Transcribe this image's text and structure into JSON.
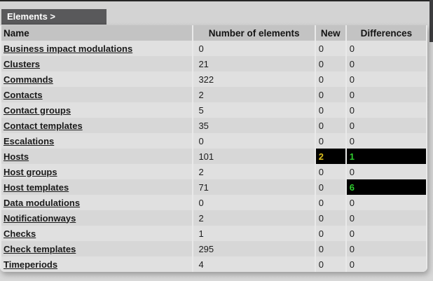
{
  "title_bar": {
    "label": "Elements >"
  },
  "table": {
    "columns": [
      "Name",
      "Number of elements",
      "New",
      "Differences"
    ],
    "rows": [
      {
        "name": "Business impact modulations",
        "count": "0",
        "new": "0",
        "diff": "0"
      },
      {
        "name": "Clusters",
        "count": "21",
        "new": "0",
        "diff": "0"
      },
      {
        "name": "Commands",
        "count": "322",
        "new": "0",
        "diff": "0"
      },
      {
        "name": "Contacts",
        "count": "2",
        "new": "0",
        "diff": "0"
      },
      {
        "name": "Contact groups",
        "count": "5",
        "new": "0",
        "diff": "0"
      },
      {
        "name": "Contact templates",
        "count": "35",
        "new": "0",
        "diff": "0"
      },
      {
        "name": "Escalations",
        "count": "0",
        "new": "0",
        "diff": "0"
      },
      {
        "name": "Hosts",
        "count": "101",
        "new": "2",
        "diff": "1",
        "new_highlight": true,
        "diff_highlight": true
      },
      {
        "name": "Host groups",
        "count": "2",
        "new": "0",
        "diff": "0"
      },
      {
        "name": "Host templates",
        "count": "71",
        "new": "0",
        "diff": "6",
        "diff_highlight": true
      },
      {
        "name": "Data modulations",
        "count": "0",
        "new": "0",
        "diff": "0"
      },
      {
        "name": "Notificationways",
        "count": "2",
        "new": "0",
        "diff": "0"
      },
      {
        "name": "Checks",
        "count": "1",
        "new": "0",
        "diff": "0"
      },
      {
        "name": "Check templates",
        "count": "295",
        "new": "0",
        "diff": "0"
      },
      {
        "name": "Timeperiods",
        "count": "4",
        "new": "0",
        "diff": "0"
      }
    ],
    "colors": {
      "highlight_bg": "#000000",
      "new_highlight_text": "#dfc11f",
      "diff_highlight_text": "#2fcd2f"
    }
  }
}
